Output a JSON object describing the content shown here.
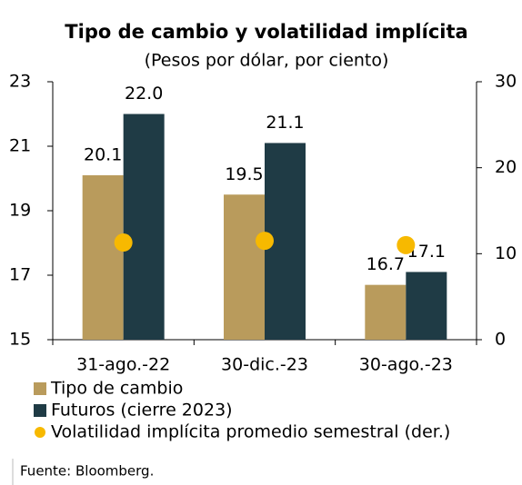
{
  "chart_data": {
    "type": "bar",
    "title": "Tipo de cambio y volatilidad implícita",
    "subtitle": "(Pesos por dólar, por ciento)",
    "categories": [
      "31-ago.-22",
      "30-dic.-23",
      "30-ago.-23"
    ],
    "series": [
      {
        "name": "Tipo de cambio",
        "color": "#b99b5c",
        "values": [
          20.1,
          19.5,
          16.7
        ],
        "value_labels": [
          "20.1",
          "19.5",
          "16.7"
        ]
      },
      {
        "name": "Futuros (cierre 2023)",
        "color": "#1f3b45",
        "values": [
          22.0,
          21.1,
          17.1
        ],
        "value_labels": [
          "22.0",
          "21.1",
          "17.1"
        ]
      },
      {
        "name": "Volatilidad implícita promedio semestral (der.)",
        "color": "#f7b900",
        "type": "scatter",
        "axis": "y2",
        "values": [
          11.3,
          11.5,
          11.0
        ]
      }
    ],
    "ylim": [
      15,
      23
    ],
    "yticks": [
      15,
      17,
      19,
      21,
      23
    ],
    "y2lim": [
      0,
      30
    ],
    "y2ticks": [
      0,
      10,
      20,
      30
    ],
    "source": "Fuente: Bloomberg."
  }
}
